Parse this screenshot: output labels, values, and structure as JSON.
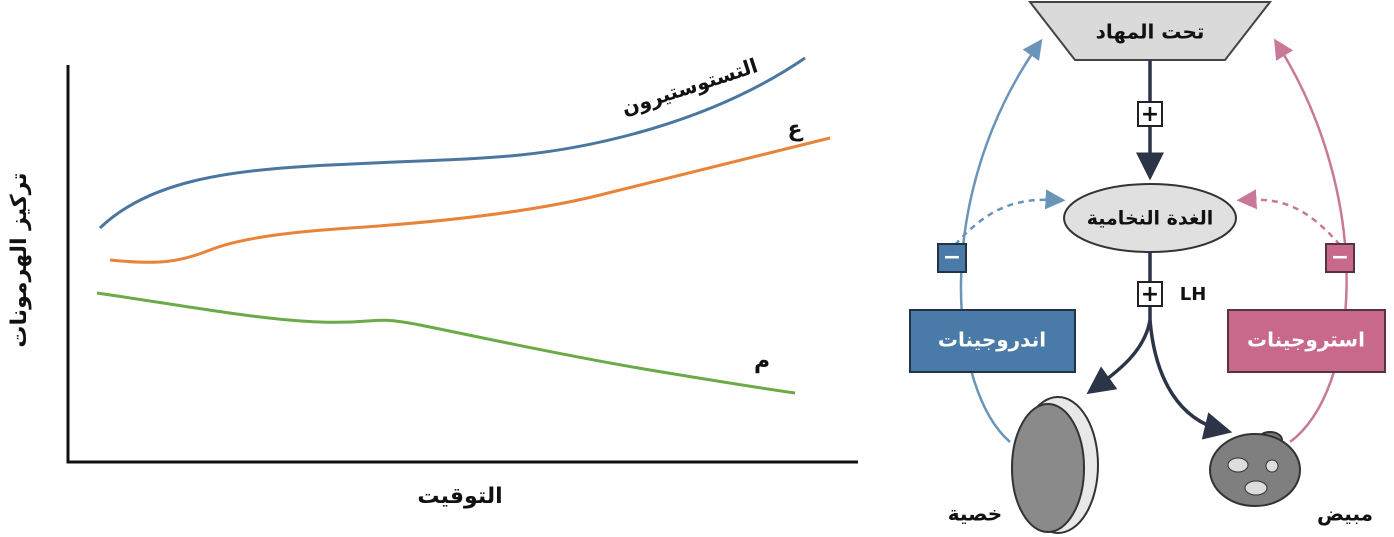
{
  "graph": {
    "y_axis_label": "تركيز الهرمونات",
    "x_axis_label": "التوقيت",
    "curves": [
      {
        "label": "التستوستيرون",
        "color": "#4a76a0"
      },
      {
        "label": "ع",
        "color": "#e8833a"
      },
      {
        "label": "م",
        "color": "#6aaa47"
      }
    ]
  },
  "diagram": {
    "nodes": [
      {
        "label": "تحت المهاد"
      },
      {
        "label": "الغدة النخامية"
      },
      {
        "label": "اندروجينات"
      },
      {
        "label": "استروجينات"
      },
      {
        "label": "خصية"
      },
      {
        "label": "مبيض"
      }
    ],
    "signs": [
      "+",
      "+",
      "−",
      "−"
    ],
    "hormone": "LH"
  }
}
